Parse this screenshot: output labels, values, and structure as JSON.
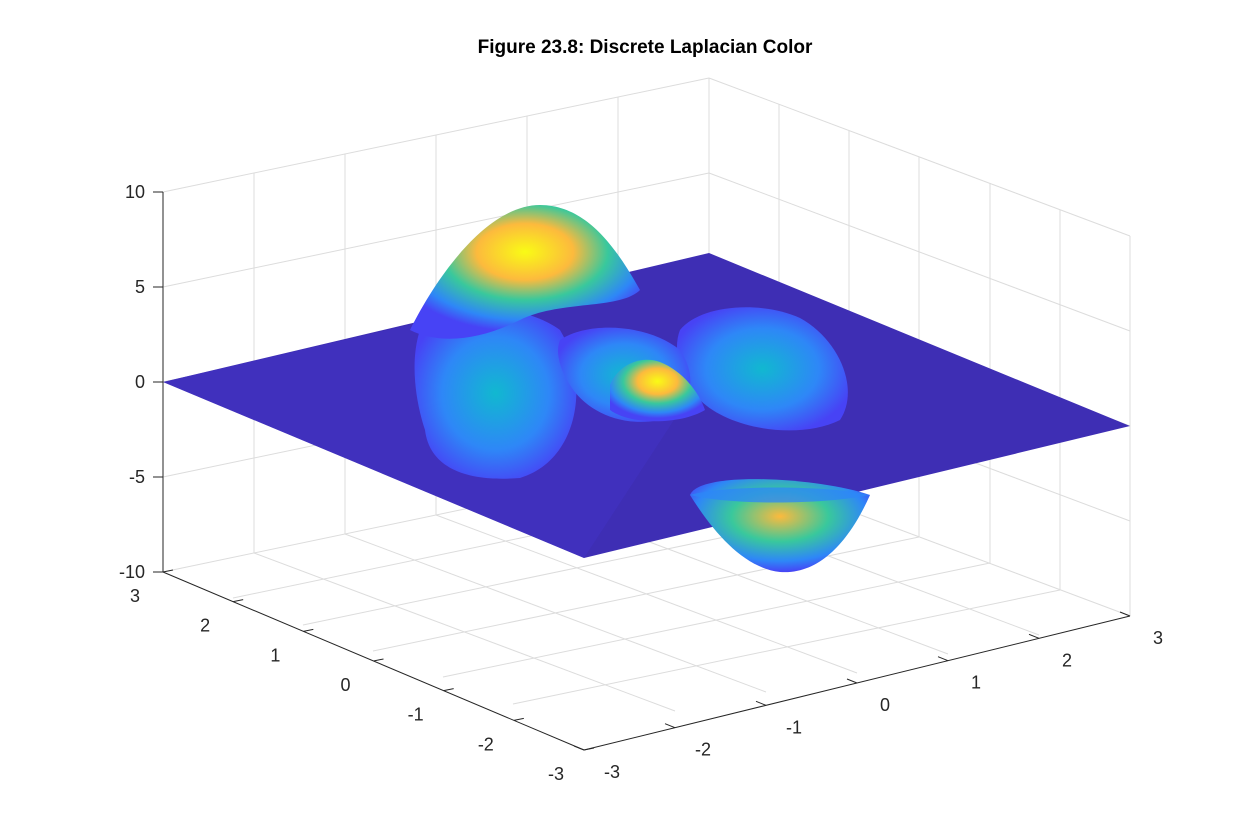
{
  "chart_data": {
    "type": "surface",
    "title": "Figure 23.8: Discrete Laplacian Color",
    "xlabel": "",
    "ylabel": "",
    "zlabel": "",
    "x_range": [
      -3,
      3
    ],
    "y_range": [
      -3,
      3
    ],
    "z_range": [
      -10,
      10
    ],
    "x_ticks": [
      -3,
      -2,
      -1,
      0,
      1,
      2,
      3
    ],
    "y_ticks": [
      -3,
      -2,
      -1,
      0,
      1,
      2,
      3
    ],
    "z_ticks": [
      -10,
      -5,
      0,
      5,
      10
    ],
    "x_tick_labels": [
      "-3",
      "-2",
      "-1",
      "0",
      "1",
      "2",
      "3"
    ],
    "y_tick_labels": [
      "-3",
      "-2",
      "-1",
      "0",
      "1",
      "2",
      "3"
    ],
    "z_tick_labels": [
      "-10",
      "-5",
      "0",
      "5",
      "10"
    ],
    "grid": true,
    "colormap": "parula",
    "colormap_stops": [
      "#3e26a8",
      "#4743f5",
      "#2e87f7",
      "#11b8d0",
      "#39c89c",
      "#a5be47",
      "#fcba3d",
      "#f9fb15"
    ],
    "peaks": [
      {
        "x": -0.8,
        "y": 1.3,
        "z": 9.0
      },
      {
        "x": 0.1,
        "y": 0.0,
        "z": 5.2
      },
      {
        "x": 1.2,
        "y": -0.5,
        "z": 3.6
      },
      {
        "x": -0.1,
        "y": 2.0,
        "z": 2.4
      },
      {
        "x": -1.8,
        "y": 0.3,
        "z": 3.0
      },
      {
        "x": 0.3,
        "y": -1.7,
        "z": -9.9
      }
    ],
    "edge_pattern": "line",
    "edge_line": "x=0 section of the surface is flat (z=0) and the outer rows and columns are zero"
  }
}
